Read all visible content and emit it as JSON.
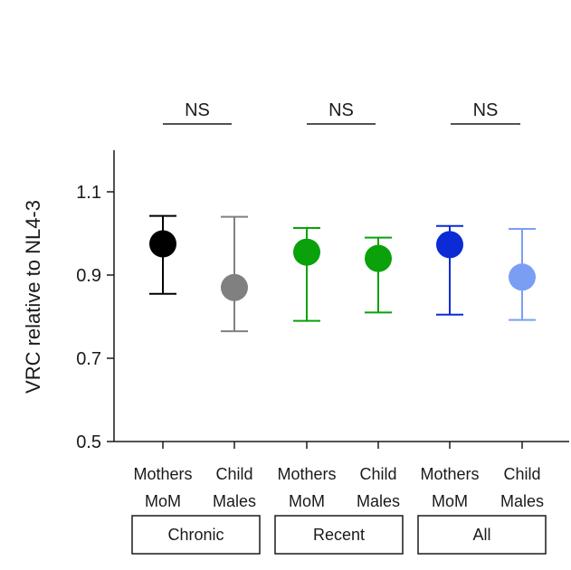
{
  "chart_data": {
    "type": "scatter",
    "ylabel": "VRC relative to NL4-3",
    "xlabel": "",
    "ylim": [
      0.5,
      1.2
    ],
    "yticks": [
      "0.5",
      "0.7",
      "0.9",
      "1.1"
    ],
    "grid": false,
    "points": [
      {
        "label_top": "Mothers",
        "label_bottom": "MoM",
        "mean": 0.975,
        "lower": 0.855,
        "upper": 1.042,
        "fill": "#000000",
        "bar": "#000000"
      },
      {
        "label_top": "Child",
        "label_bottom": "Males",
        "mean": 0.87,
        "lower": 0.765,
        "upper": 1.04,
        "fill": "#808080",
        "bar": "#808080"
      },
      {
        "label_top": "Mothers",
        "label_bottom": "MoM",
        "mean": 0.955,
        "lower": 0.79,
        "upper": 1.013,
        "fill": "#0aa10a",
        "bar": "#0aa10a"
      },
      {
        "label_top": "Child",
        "label_bottom": "Males",
        "mean": 0.94,
        "lower": 0.81,
        "upper": 0.99,
        "fill": "#0aa10a",
        "bar": "#0aa10a"
      },
      {
        "label_top": "Mothers",
        "label_bottom": "MoM",
        "mean": 0.973,
        "lower": 0.805,
        "upper": 1.018,
        "fill": "#0a2bd6",
        "bar": "#0a2bd6"
      },
      {
        "label_top": "Child",
        "label_bottom": "Males",
        "mean": 0.895,
        "lower": 0.792,
        "upper": 1.011,
        "fill": "#7b9ef5",
        "bar": "#7b9ef5"
      }
    ],
    "groups": [
      {
        "name": "Chronic",
        "significance": "NS"
      },
      {
        "name": "Recent",
        "significance": "NS"
      },
      {
        "name": "All",
        "significance": "NS"
      }
    ]
  }
}
